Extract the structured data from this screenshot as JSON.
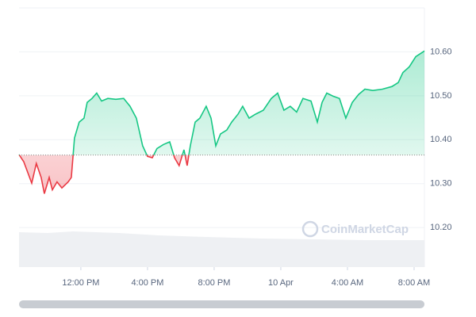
{
  "chart_data": {
    "type": "line",
    "watermark": "CoinMarketCap",
    "x": [
      8.29,
      8.57,
      9.05,
      9.33,
      9.62,
      9.81,
      10.1,
      10.29,
      10.57,
      10.86,
      11.24,
      11.43,
      11.62,
      11.9,
      12.19,
      12.38,
      12.67,
      12.95,
      13.24,
      13.62,
      14.1,
      14.57,
      14.95,
      15.33,
      15.71,
      16.0,
      16.29,
      16.57,
      16.95,
      17.33,
      17.62,
      17.9,
      18.19,
      18.38,
      18.57,
      18.86,
      19.14,
      19.52,
      19.81,
      20.1,
      20.38,
      20.76,
      21.05,
      21.43,
      21.71,
      22.1,
      22.48,
      22.95,
      23.43,
      23.81,
      24.19,
      24.57,
      24.95,
      25.33,
      25.81,
      26.19,
      26.48,
      26.76,
      27.14,
      27.52,
      27.9,
      28.29,
      28.67,
      29.05,
      29.52,
      30.1,
      30.67,
      31.05,
      31.33,
      31.71,
      32.1,
      32.62
    ],
    "values": [
      10.366,
      10.35,
      10.301,
      10.346,
      10.314,
      10.277,
      10.314,
      10.286,
      10.304,
      10.29,
      10.304,
      10.314,
      10.404,
      10.44,
      10.449,
      10.485,
      10.494,
      10.506,
      10.488,
      10.494,
      10.492,
      10.494,
      10.476,
      10.449,
      10.386,
      10.362,
      10.359,
      10.38,
      10.389,
      10.395,
      10.359,
      10.341,
      10.377,
      10.341,
      10.386,
      10.44,
      10.449,
      10.476,
      10.449,
      10.386,
      10.413,
      10.422,
      10.44,
      10.458,
      10.476,
      10.449,
      10.458,
      10.467,
      10.494,
      10.506,
      10.467,
      10.476,
      10.463,
      10.494,
      10.488,
      10.44,
      10.485,
      10.506,
      10.499,
      10.494,
      10.449,
      10.485,
      10.503,
      10.515,
      10.512,
      10.515,
      10.521,
      10.53,
      10.553,
      10.566,
      10.589,
      10.602
    ],
    "baseline": 10.365,
    "up_color": "#16c784",
    "down_color": "#ea3943",
    "xlim": [
      8.29,
      32.62
    ],
    "xticks": [
      {
        "value": 12,
        "label": "12:00 PM"
      },
      {
        "value": 16,
        "label": "4:00 PM"
      },
      {
        "value": 20,
        "label": "8:00 PM"
      },
      {
        "value": 24,
        "label": "10 Apr"
      },
      {
        "value": 28,
        "label": "4:00 AM"
      },
      {
        "value": 32,
        "label": "8:00 AM"
      }
    ],
    "ylim": [
      10.11,
      10.7
    ],
    "yticks": [
      {
        "value": 10.2,
        "label": "10.20"
      },
      {
        "value": 10.3,
        "label": "10.30"
      },
      {
        "value": 10.4,
        "label": "10.40"
      },
      {
        "value": 10.5,
        "label": "10.50"
      },
      {
        "value": 10.6,
        "label": "10.60"
      }
    ],
    "grid": true
  }
}
